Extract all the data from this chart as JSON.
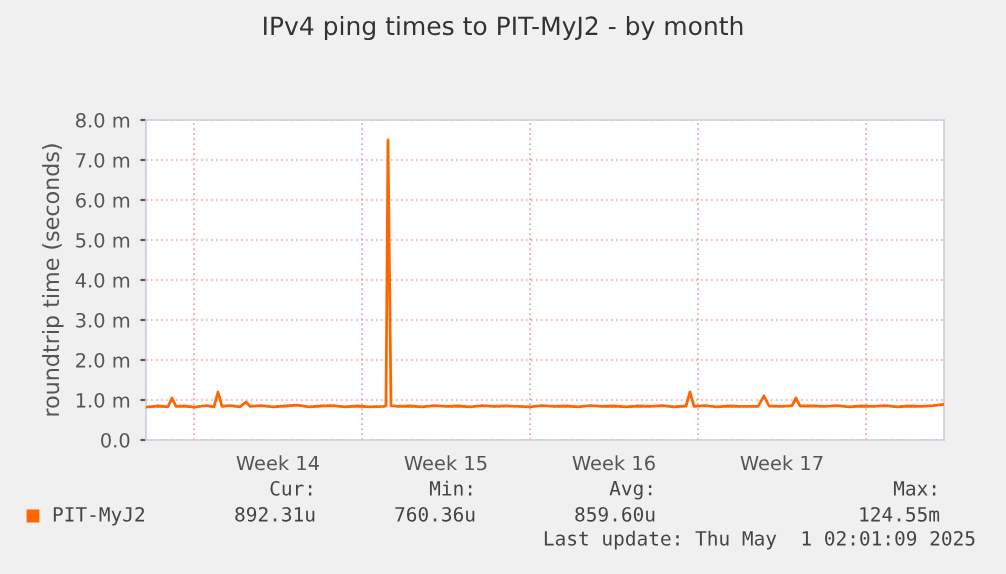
{
  "chart_data": {
    "type": "line",
    "title": "IPv4 ping times to PIT-MyJ2 - by month",
    "ylabel": "roundtrip time (seconds)",
    "xlim": [
      "2025-03-29T00:00",
      "2025-05-01T06:00"
    ],
    "ylim": [
      0,
      8
    ],
    "xticks": [
      {
        "value": "2025-03-31T00:00",
        "label": null
      },
      {
        "value": "2025-04-03T12:00",
        "label": "Week 14"
      },
      {
        "value": "2025-04-07T00:00",
        "label": null
      },
      {
        "value": "2025-04-10T12:00",
        "label": "Week 15"
      },
      {
        "value": "2025-04-14T00:00",
        "label": null
      },
      {
        "value": "2025-04-17T12:00",
        "label": "Week 16"
      },
      {
        "value": "2025-04-21T00:00",
        "label": null
      },
      {
        "value": "2025-04-24T12:00",
        "label": "Week 17"
      },
      {
        "value": "2025-04-28T00:00",
        "label": null
      }
    ],
    "yticks": [
      {
        "value": 0,
        "label": "0.0"
      },
      {
        "value": 1,
        "label": "1.0 m"
      },
      {
        "value": 2,
        "label": "2.0 m"
      },
      {
        "value": 3,
        "label": "3.0 m"
      },
      {
        "value": 4,
        "label": "4.0 m"
      },
      {
        "value": 5,
        "label": "5.0 m"
      },
      {
        "value": 6,
        "label": "6.0 m"
      },
      {
        "value": 7,
        "label": "7.0 m"
      },
      {
        "value": 8,
        "label": "8.0 m"
      }
    ],
    "grid": true,
    "legend": "bottom",
    "series": [
      {
        "name": "PIT-MyJ2",
        "color": "#ff6600",
        "x": [
          "2025-03-29T00:00",
          "2025-03-29T12:00",
          "2025-03-29T22:00",
          "2025-03-30T02:00",
          "2025-03-30T06:00",
          "2025-03-30T14:00",
          "2025-03-31T00:00",
          "2025-03-31T12:00",
          "2025-03-31T20:00",
          "2025-04-01T00:00",
          "2025-04-01T04:00",
          "2025-04-01T12:00",
          "2025-04-01T22:00",
          "2025-04-02T04:00",
          "2025-04-02T08:00",
          "2025-04-02T19:00",
          "2025-04-03T07:00",
          "2025-04-03T19:00",
          "2025-04-04T07:00",
          "2025-04-04T19:00",
          "2025-04-05T07:00",
          "2025-04-05T19:00",
          "2025-04-06T07:00",
          "2025-04-06T19:00",
          "2025-04-07T07:00",
          "2025-04-07T22:00",
          "2025-04-08T00:00",
          "2025-04-08T02:00",
          "2025-04-08T05:00",
          "2025-04-08T12:00",
          "2025-04-09T00:00",
          "2025-04-09T12:00",
          "2025-04-10T00:00",
          "2025-04-10T12:00",
          "2025-04-11T00:00",
          "2025-04-11T12:00",
          "2025-04-12T00:00",
          "2025-04-12T12:00",
          "2025-04-13T00:00",
          "2025-04-13T12:00",
          "2025-04-14T00:00",
          "2025-04-14T12:00",
          "2025-04-15T00:00",
          "2025-04-15T12:00",
          "2025-04-16T00:00",
          "2025-04-16T12:00",
          "2025-04-17T00:00",
          "2025-04-17T12:00",
          "2025-04-18T00:00",
          "2025-04-18T12:00",
          "2025-04-19T00:00",
          "2025-04-19T12:00",
          "2025-04-20T00:00",
          "2025-04-20T12:00",
          "2025-04-20T16:00",
          "2025-04-20T20:00",
          "2025-04-21T07:00",
          "2025-04-21T19:00",
          "2025-04-22T07:00",
          "2025-04-22T19:00",
          "2025-04-23T12:00",
          "2025-04-23T18:00",
          "2025-04-23T23:00",
          "2025-04-24T12:00",
          "2025-04-24T22:00",
          "2025-04-25T02:00",
          "2025-04-25T06:00",
          "2025-04-25T19:00",
          "2025-04-26T07:00",
          "2025-04-26T19:00",
          "2025-04-27T07:00",
          "2025-04-27T19:00",
          "2025-04-28T07:00",
          "2025-04-28T19:00",
          "2025-04-29T07:00",
          "2025-04-29T19:00",
          "2025-04-30T07:00",
          "2025-04-30T19:00",
          "2025-05-01T06:00"
        ],
        "values": [
          0.82,
          0.85,
          0.83,
          1.05,
          0.84,
          0.85,
          0.82,
          0.86,
          0.83,
          1.2,
          0.84,
          0.86,
          0.83,
          0.95,
          0.84,
          0.86,
          0.83,
          0.85,
          0.87,
          0.83,
          0.85,
          0.86,
          0.83,
          0.85,
          0.83,
          0.84,
          0.86,
          7.5,
          0.86,
          0.84,
          0.85,
          0.83,
          0.86,
          0.84,
          0.85,
          0.83,
          0.86,
          0.84,
          0.85,
          0.84,
          0.83,
          0.86,
          0.84,
          0.85,
          0.83,
          0.86,
          0.84,
          0.85,
          0.83,
          0.85,
          0.84,
          0.86,
          0.83,
          0.85,
          1.2,
          0.84,
          0.86,
          0.83,
          0.85,
          0.84,
          0.84,
          1.1,
          0.85,
          0.84,
          0.86,
          1.05,
          0.85,
          0.85,
          0.84,
          0.86,
          0.83,
          0.85,
          0.84,
          0.86,
          0.83,
          0.85,
          0.84,
          0.86,
          0.89
        ]
      }
    ],
    "annotations": [
      "Cur:",
      "Min:",
      "Avg:",
      "Max:",
      "892.31u",
      "760.36u",
      "859.60u",
      "124.55m",
      "Last update: Thu May  1 02:01:09 2025"
    ]
  }
}
